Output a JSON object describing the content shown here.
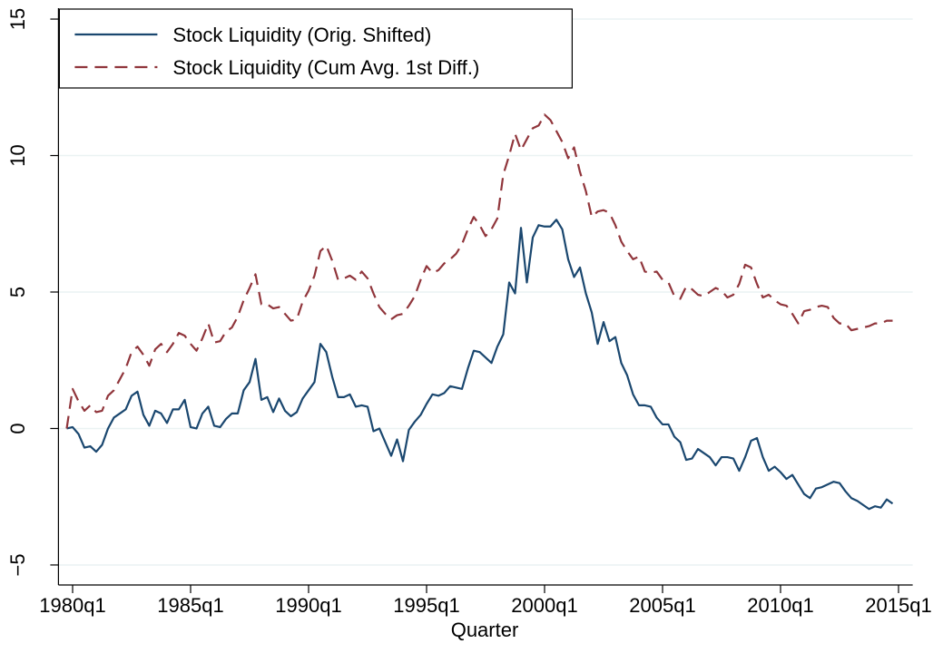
{
  "chart_data": {
    "type": "line",
    "xlabel": "Quarter",
    "x": [
      1979.75,
      1980,
      1980.25,
      1980.5,
      1980.75,
      1981,
      1981.25,
      1981.5,
      1981.75,
      1982,
      1982.25,
      1982.5,
      1982.75,
      1983,
      1983.25,
      1983.5,
      1983.75,
      1984,
      1984.25,
      1984.5,
      1984.75,
      1985,
      1985.25,
      1985.5,
      1985.75,
      1986,
      1986.25,
      1986.5,
      1986.75,
      1987,
      1987.25,
      1987.5,
      1987.75,
      1988,
      1988.25,
      1988.5,
      1988.75,
      1989,
      1989.25,
      1989.5,
      1989.75,
      1990,
      1990.25,
      1990.5,
      1990.75,
      1991,
      1991.25,
      1991.5,
      1991.75,
      1992,
      1992.25,
      1992.5,
      1992.75,
      1993,
      1993.25,
      1993.5,
      1993.75,
      1994,
      1994.25,
      1994.5,
      1994.75,
      1995,
      1995.25,
      1995.5,
      1995.75,
      1996,
      1996.25,
      1996.5,
      1996.75,
      1997,
      1997.25,
      1997.5,
      1997.75,
      1998,
      1998.25,
      1998.5,
      1998.75,
      1999,
      1999.25,
      1999.5,
      1999.75,
      2000,
      2000.25,
      2000.5,
      2000.75,
      2001,
      2001.25,
      2001.5,
      2001.75,
      2002,
      2002.25,
      2002.5,
      2002.75,
      2003,
      2003.25,
      2003.5,
      2003.75,
      2004,
      2004.25,
      2004.5,
      2004.75,
      2005,
      2005.25,
      2005.5,
      2005.75,
      2006,
      2006.25,
      2006.5,
      2006.75,
      2007,
      2007.25,
      2007.5,
      2007.75,
      2008,
      2008.25,
      2008.5,
      2008.75,
      2009,
      2009.25,
      2009.5,
      2009.75,
      2010,
      2010.25,
      2010.5,
      2010.75,
      2011,
      2011.25,
      2011.5,
      2011.75,
      2012,
      2012.25,
      2012.5,
      2012.75,
      2013,
      2013.25,
      2013.5,
      2013.75,
      2014,
      2014.25,
      2014.5,
      2014.75
    ],
    "series": [
      {
        "name": "Stock Liquidity (Orig. Shifted)",
        "color": "#1a476f",
        "line_style": "solid",
        "values": [
          0,
          0.05,
          -0.2,
          -0.7,
          -0.65,
          -0.85,
          -0.6,
          0,
          0.4,
          0.55,
          0.7,
          1.2,
          1.35,
          0.5,
          0.1,
          0.65,
          0.55,
          0.2,
          0.7,
          0.7,
          1.05,
          0.05,
          0,
          0.55,
          0.8,
          0.1,
          0.05,
          0.35,
          0.55,
          0.55,
          1.4,
          1.7,
          2.55,
          1.05,
          1.15,
          0.6,
          1.1,
          0.65,
          0.45,
          0.6,
          1.1,
          1.4,
          1.7,
          3.1,
          2.8,
          1.9,
          1.15,
          1.15,
          1.25,
          0.8,
          0.85,
          0.8,
          -0.1,
          0,
          -0.5,
          -1,
          -0.4,
          -1.2,
          -0.05,
          0.25,
          0.5,
          0.9,
          1.25,
          1.2,
          1.3,
          1.55,
          1.5,
          1.45,
          2.2,
          2.85,
          2.8,
          2.6,
          2.4,
          3,
          3.45,
          5.35,
          4.95,
          7.35,
          5.35,
          7,
          7.45,
          7.4,
          7.4,
          7.65,
          7.3,
          6.2,
          5.55,
          5.9,
          4.95,
          4.25,
          3.1,
          3.9,
          3.2,
          3.35,
          2.4,
          1.95,
          1.25,
          0.85,
          0.85,
          0.8,
          0.4,
          0.15,
          0.15,
          -0.3,
          -0.5,
          -1.15,
          -1.1,
          -0.75,
          -0.9,
          -1.05,
          -1.35,
          -1.05,
          -1.05,
          -1.1,
          -1.55,
          -1.05,
          -0.45,
          -0.35,
          -1.05,
          -1.55,
          -1.4,
          -1.6,
          -1.85,
          -1.7,
          -2.05,
          -2.4,
          -2.55,
          -2.2,
          -2.15,
          -2.05,
          -1.95,
          -2,
          -2.3,
          -2.55,
          -2.65,
          -2.8,
          -2.95,
          -2.85,
          -2.9,
          -2.6,
          -2.75
        ]
      },
      {
        "name": "Stock Liquidity (Cum Avg. 1st Diff.)",
        "color": "#90353b",
        "line_style": "dashed",
        "values": [
          0,
          1.45,
          1,
          0.65,
          0.85,
          0.6,
          0.65,
          1.2,
          1.4,
          1.8,
          2.2,
          2.8,
          3,
          2.7,
          2.3,
          2.9,
          3.1,
          2.8,
          3.1,
          3.5,
          3.4,
          3.1,
          2.85,
          3.3,
          3.85,
          3.15,
          3.2,
          3.55,
          3.7,
          4.1,
          4.7,
          5.15,
          5.65,
          4.55,
          4.55,
          4.4,
          4.45,
          4.2,
          3.95,
          4,
          4.65,
          5.05,
          5.6,
          6.5,
          6.7,
          6.15,
          5.45,
          5.5,
          5.6,
          5.45,
          5.75,
          5.5,
          4.95,
          4.45,
          4.2,
          4,
          4.15,
          4.2,
          4.5,
          4.85,
          5.45,
          5.95,
          5.7,
          5.8,
          6.05,
          6.2,
          6.4,
          6.75,
          7.3,
          7.75,
          7.45,
          7.05,
          7.3,
          7.7,
          9.3,
          10,
          10.8,
          10.2,
          10.6,
          11,
          11.1,
          11.5,
          11.3,
          10.9,
          10.5,
          9.9,
          10.3,
          9.4,
          8.7,
          7.75,
          7.95,
          8,
          7.9,
          7.45,
          6.85,
          6.5,
          6.2,
          6.3,
          5.75,
          5.7,
          5.75,
          5.45,
          5.35,
          4.85,
          4.75,
          5.2,
          5.1,
          4.9,
          4.85,
          5,
          5.15,
          5.05,
          4.8,
          4.9,
          5.3,
          6,
          5.9,
          5.3,
          4.8,
          4.9,
          4.7,
          4.55,
          4.5,
          4.2,
          3.85,
          4.3,
          4.35,
          4.45,
          4.5,
          4.45,
          4.05,
          3.85,
          3.85,
          3.6,
          3.65,
          3.7,
          3.75,
          3.85,
          3.85,
          3.95,
          3.95
        ]
      }
    ],
    "xlim": [
      1979.4,
      2015.6
    ],
    "xticks": [
      {
        "value": 1980,
        "label": "1980q1"
      },
      {
        "value": 1985,
        "label": "1985q1"
      },
      {
        "value": 1990,
        "label": "1990q1"
      },
      {
        "value": 1995,
        "label": "1995q1"
      },
      {
        "value": 2000,
        "label": "2000q1"
      },
      {
        "value": 2005,
        "label": "2005q1"
      },
      {
        "value": 2010,
        "label": "2010q1"
      },
      {
        "value": 2015,
        "label": "2015q1"
      }
    ],
    "ylim": [
      -5.6,
      15.4
    ],
    "yticks": [
      {
        "value": -5,
        "label": "−5"
      },
      0,
      5,
      10,
      15
    ],
    "grid": true,
    "legend": "top-left"
  }
}
